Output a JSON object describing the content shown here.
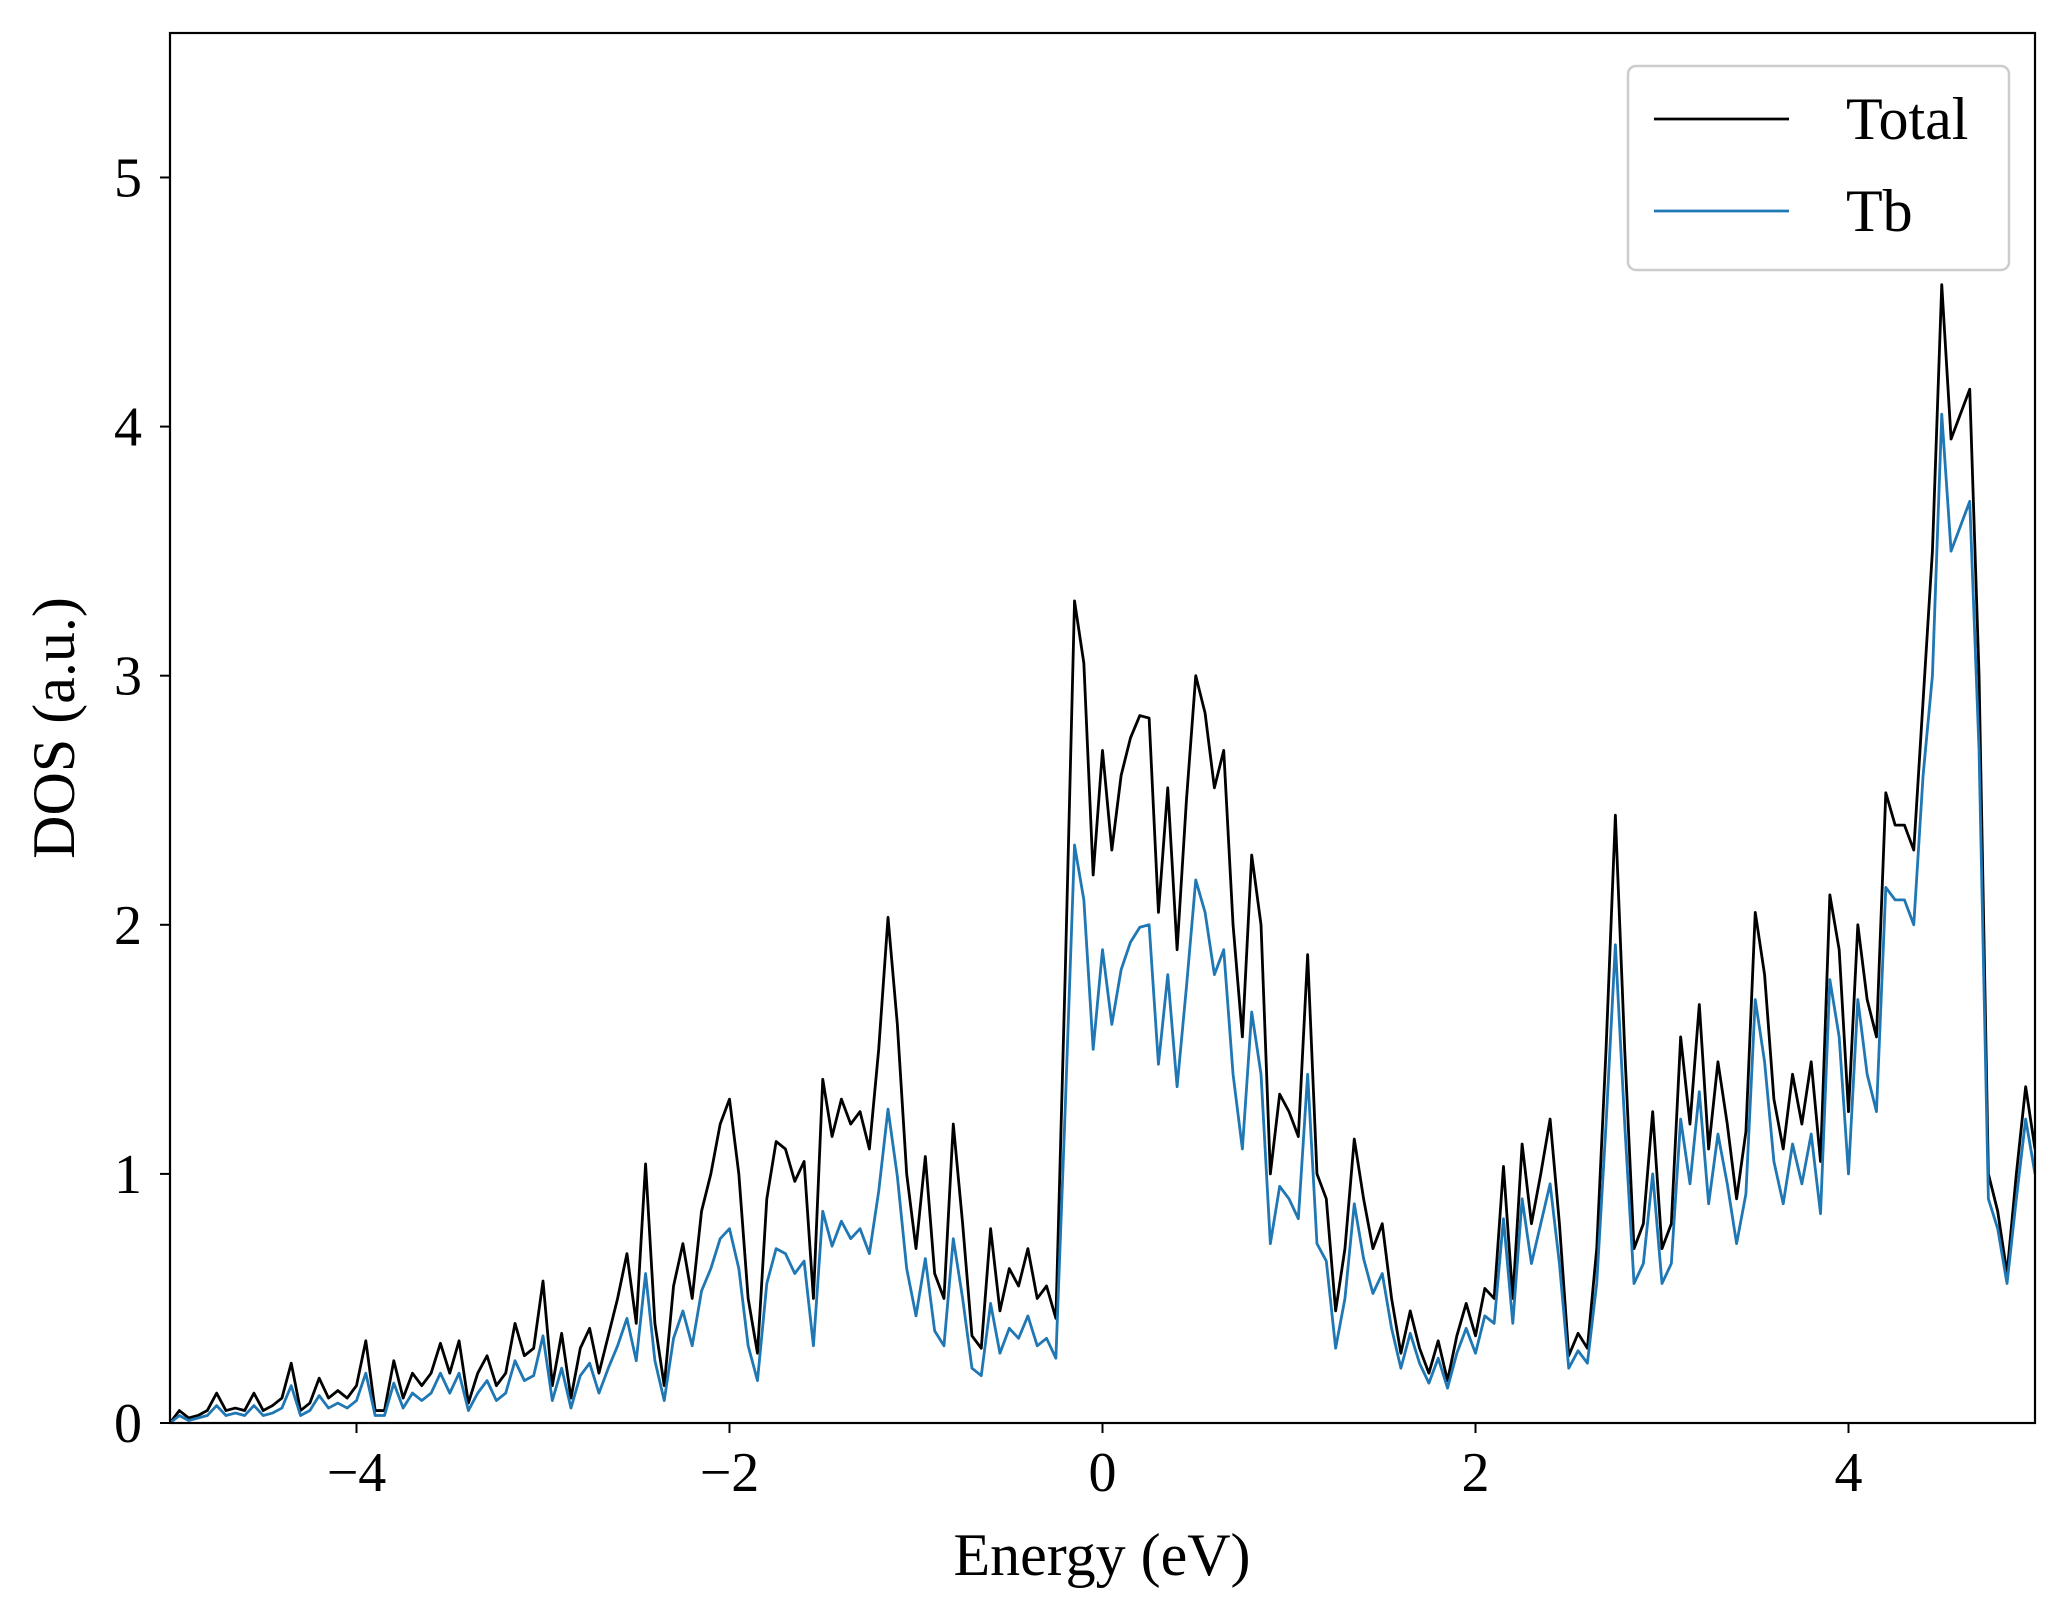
{
  "chart_data": {
    "type": "line",
    "xlabel": "Energy (eV)",
    "ylabel": "DOS (a.u.)",
    "xlim": [
      -5,
      5
    ],
    "ylim": [
      0,
      5.58
    ],
    "xticks": [
      {
        "value": -4,
        "label": "−4"
      },
      {
        "value": -2,
        "label": "−2"
      },
      0,
      2,
      4
    ],
    "yticks": [
      0,
      1,
      2,
      3,
      4,
      5
    ],
    "legend": "upper right",
    "x": [
      -5,
      -4.95,
      -4.9,
      -4.85,
      -4.8,
      -4.75,
      -4.7,
      -4.65,
      -4.6,
      -4.55,
      -4.5,
      -4.45,
      -4.4,
      -4.35,
      -4.3,
      -4.25,
      -4.2,
      -4.15,
      -4.1,
      -4.05,
      -4,
      -3.95,
      -3.9,
      -3.85,
      -3.8,
      -3.75,
      -3.7,
      -3.65,
      -3.6,
      -3.55,
      -3.5,
      -3.45,
      -3.4,
      -3.35,
      -3.3,
      -3.25,
      -3.2,
      -3.15,
      -3.1,
      -3.05,
      -3,
      -2.95,
      -2.9,
      -2.85,
      -2.8,
      -2.75,
      -2.7,
      -2.65,
      -2.6,
      -2.55,
      -2.5,
      -2.45,
      -2.4,
      -2.35,
      -2.3,
      -2.25,
      -2.2,
      -2.15,
      -2.1,
      -2.05,
      -2,
      -1.95,
      -1.9,
      -1.85,
      -1.8,
      -1.75,
      -1.7,
      -1.65,
      -1.6,
      -1.55,
      -1.5,
      -1.45,
      -1.4,
      -1.35,
      -1.3,
      -1.25,
      -1.2,
      -1.15,
      -1.1,
      -1.05,
      -1,
      -0.95,
      -0.9,
      -0.85,
      -0.8,
      -0.75,
      -0.7,
      -0.65,
      -0.6,
      -0.55,
      -0.5,
      -0.45,
      -0.4,
      -0.35,
      -0.3,
      -0.25,
      -0.2,
      -0.15,
      -0.1,
      -0.05,
      0,
      0.05,
      0.1,
      0.15,
      0.2,
      0.25,
      0.3,
      0.35,
      0.4,
      0.45,
      0.5,
      0.55,
      0.6,
      0.65,
      0.7,
      0.75,
      0.8,
      0.85,
      0.9,
      0.95,
      1,
      1.05,
      1.1,
      1.15,
      1.2,
      1.25,
      1.3,
      1.35,
      1.4,
      1.45,
      1.5,
      1.55,
      1.6,
      1.65,
      1.7,
      1.75,
      1.8,
      1.85,
      1.9,
      1.95,
      2,
      2.05,
      2.1,
      2.15,
      2.2,
      2.25,
      2.3,
      2.35,
      2.4,
      2.45,
      2.5,
      2.55,
      2.6,
      2.65,
      2.7,
      2.75,
      2.8,
      2.85,
      2.9,
      2.95,
      3,
      3.05,
      3.1,
      3.15,
      3.2,
      3.25,
      3.3,
      3.35,
      3.4,
      3.45,
      3.5,
      3.55,
      3.6,
      3.65,
      3.7,
      3.75,
      3.8,
      3.85,
      3.9,
      3.95,
      4,
      4.05,
      4.1,
      4.15,
      4.2,
      4.25,
      4.3,
      4.35,
      4.4,
      4.45,
      4.5,
      4.55,
      4.6,
      4.65,
      4.7,
      4.75,
      4.8,
      4.85,
      4.9,
      4.95,
      5
    ],
    "series": [
      {
        "name": "Total",
        "color": "#000000",
        "values": [
          0.0,
          0.05,
          0.02,
          0.03,
          0.05,
          0.12,
          0.05,
          0.06,
          0.05,
          0.12,
          0.05,
          0.07,
          0.1,
          0.24,
          0.05,
          0.08,
          0.18,
          0.1,
          0.13,
          0.1,
          0.15,
          0.33,
          0.05,
          0.05,
          0.25,
          0.1,
          0.2,
          0.15,
          0.2,
          0.32,
          0.2,
          0.33,
          0.08,
          0.2,
          0.27,
          0.15,
          0.2,
          0.4,
          0.27,
          0.3,
          0.57,
          0.15,
          0.36,
          0.1,
          0.3,
          0.38,
          0.2,
          0.35,
          0.5,
          0.68,
          0.4,
          1.04,
          0.4,
          0.15,
          0.55,
          0.72,
          0.5,
          0.85,
          1.0,
          1.2,
          1.3,
          1.0,
          0.5,
          0.28,
          0.9,
          1.13,
          1.1,
          0.97,
          1.05,
          0.5,
          1.38,
          1.15,
          1.3,
          1.2,
          1.25,
          1.1,
          1.5,
          2.03,
          1.6,
          1.0,
          0.7,
          1.07,
          0.6,
          0.5,
          1.2,
          0.8,
          0.35,
          0.3,
          0.78,
          0.45,
          0.62,
          0.55,
          0.7,
          0.5,
          0.55,
          0.42,
          1.8,
          3.3,
          3.05,
          2.2,
          2.7,
          2.3,
          2.6,
          2.75,
          2.84,
          2.83,
          2.05,
          2.55,
          1.9,
          2.5,
          3.0,
          2.85,
          2.55,
          2.7,
          2.0,
          1.55,
          2.28,
          2.0,
          1.0,
          1.32,
          1.25,
          1.15,
          1.88,
          1.0,
          0.9,
          0.45,
          0.7,
          1.14,
          0.9,
          0.7,
          0.8,
          0.5,
          0.28,
          0.45,
          0.3,
          0.2,
          0.33,
          0.17,
          0.35,
          0.48,
          0.35,
          0.54,
          0.5,
          1.03,
          0.5,
          1.12,
          0.8,
          1.0,
          1.22,
          0.8,
          0.27,
          0.36,
          0.3,
          0.7,
          1.5,
          2.44,
          1.5,
          0.7,
          0.8,
          1.25,
          0.7,
          0.8,
          1.55,
          1.2,
          1.68,
          1.1,
          1.45,
          1.2,
          0.9,
          1.17,
          2.05,
          1.8,
          1.3,
          1.1,
          1.4,
          1.2,
          1.45,
          1.05,
          2.12,
          1.9,
          1.25,
          2.0,
          1.7,
          1.55,
          2.53,
          2.4,
          2.4,
          2.3,
          2.9,
          3.5,
          4.57,
          3.95,
          4.05,
          4.15,
          3.0,
          1.0,
          0.85,
          0.6,
          1.0,
          1.35,
          1.1
        ]
      },
      {
        "name": "Tb",
        "color": "#1f77b4",
        "values": [
          0.0,
          0.03,
          0.01,
          0.02,
          0.03,
          0.07,
          0.03,
          0.04,
          0.03,
          0.07,
          0.03,
          0.04,
          0.06,
          0.15,
          0.03,
          0.05,
          0.11,
          0.06,
          0.08,
          0.06,
          0.09,
          0.2,
          0.03,
          0.03,
          0.16,
          0.06,
          0.12,
          0.09,
          0.12,
          0.2,
          0.12,
          0.2,
          0.05,
          0.12,
          0.17,
          0.09,
          0.12,
          0.25,
          0.17,
          0.19,
          0.35,
          0.09,
          0.22,
          0.06,
          0.19,
          0.24,
          0.12,
          0.22,
          0.31,
          0.42,
          0.25,
          0.6,
          0.25,
          0.09,
          0.34,
          0.45,
          0.31,
          0.53,
          0.62,
          0.74,
          0.78,
          0.62,
          0.31,
          0.17,
          0.56,
          0.7,
          0.68,
          0.6,
          0.65,
          0.31,
          0.85,
          0.71,
          0.81,
          0.74,
          0.78,
          0.68,
          0.93,
          1.26,
          0.99,
          0.62,
          0.43,
          0.66,
          0.37,
          0.31,
          0.74,
          0.5,
          0.22,
          0.19,
          0.48,
          0.28,
          0.38,
          0.34,
          0.43,
          0.31,
          0.34,
          0.26,
          1.26,
          2.32,
          2.1,
          1.5,
          1.9,
          1.6,
          1.82,
          1.93,
          1.99,
          2.0,
          1.44,
          1.8,
          1.35,
          1.75,
          2.18,
          2.05,
          1.8,
          1.9,
          1.4,
          1.1,
          1.65,
          1.4,
          0.72,
          0.95,
          0.9,
          0.82,
          1.4,
          0.72,
          0.65,
          0.3,
          0.5,
          0.88,
          0.66,
          0.52,
          0.6,
          0.38,
          0.22,
          0.36,
          0.24,
          0.16,
          0.26,
          0.14,
          0.28,
          0.38,
          0.28,
          0.43,
          0.4,
          0.82,
          0.4,
          0.9,
          0.64,
          0.8,
          0.96,
          0.64,
          0.22,
          0.29,
          0.24,
          0.56,
          1.2,
          1.92,
          1.2,
          0.56,
          0.64,
          1.0,
          0.56,
          0.64,
          1.22,
          0.96,
          1.33,
          0.88,
          1.16,
          0.96,
          0.72,
          0.92,
          1.7,
          1.45,
          1.05,
          0.88,
          1.12,
          0.96,
          1.16,
          0.84,
          1.78,
          1.55,
          1.0,
          1.7,
          1.4,
          1.25,
          2.15,
          2.1,
          2.1,
          2.0,
          2.6,
          3.0,
          4.05,
          3.5,
          3.6,
          3.7,
          2.7,
          0.9,
          0.78,
          0.56,
          0.9,
          1.22,
          1.0
        ]
      }
    ]
  }
}
